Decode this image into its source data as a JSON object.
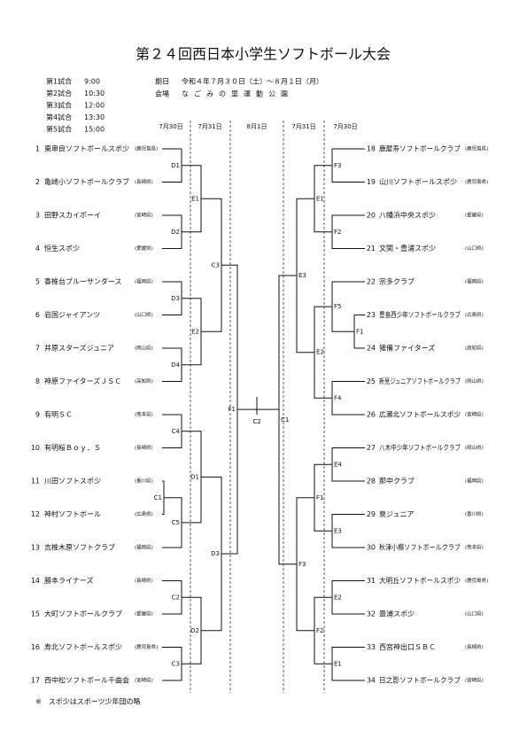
{
  "title": "第２４回西日本小学生ソフトボール大会",
  "schedule": [
    {
      "game": "第1試合",
      "time": "9:00"
    },
    {
      "game": "第2試合",
      "time": "10:30"
    },
    {
      "game": "第3試合",
      "time": "12:00"
    },
    {
      "game": "第4試合",
      "time": "13:30"
    },
    {
      "game": "第5試合",
      "time": "15:00"
    }
  ],
  "period_label": "期日",
  "period": "令和４年７月３０日（土）～８月１日（月）",
  "venue_label": "会場",
  "venue": "なごみの里運動公園",
  "dates": [
    "7月30日",
    "7月31日",
    "8月1日",
    "7月31日",
    "7月30日"
  ],
  "teams_left": [
    {
      "no": 1,
      "name": "東串良ソフトボールスポ少",
      "pref": "(鹿児島県)"
    },
    {
      "no": 2,
      "name": "亀崎小ソフトボールクラブ",
      "pref": "(長崎県)"
    },
    {
      "no": 3,
      "name": "田野スカイボーイ",
      "pref": "(宮崎県)"
    },
    {
      "no": 4,
      "name": "恒生スポ少",
      "pref": "(愛媛県)"
    },
    {
      "no": 5,
      "name": "香椎台ブルーサンダース",
      "pref": "(福岡県)"
    },
    {
      "no": 6,
      "name": "岩国ジャイアンツ",
      "pref": "(山口県)"
    },
    {
      "no": 7,
      "name": "井原スターズジュニア",
      "pref": "(岡山県)"
    },
    {
      "no": 8,
      "name": "神原ファイターズＪＳＣ",
      "pref": "(高知県)"
    },
    {
      "no": 9,
      "name": "有明ＳＣ",
      "pref": "(熊本県)"
    },
    {
      "no": 10,
      "name": "有明桜Ｂｏｙ．Ｓ",
      "pref": "(長崎県)"
    },
    {
      "no": 11,
      "name": "川田ソフトスポ少",
      "pref": "(香川県)"
    },
    {
      "no": 12,
      "name": "神村ソフトボール",
      "pref": "(広島県)"
    },
    {
      "no": 13,
      "name": "吉椎木原ソフトクラブ",
      "pref": "(福岡県)"
    },
    {
      "no": 14,
      "name": "勝本ライナーズ",
      "pref": "(長崎県)"
    },
    {
      "no": 15,
      "name": "大町ソフトボールクラブ",
      "pref": "(愛媛県)"
    },
    {
      "no": 16,
      "name": "寿北ソフトボールスポ少",
      "pref": "(鹿児島県)"
    },
    {
      "no": 17,
      "name": "西中松ソフトボール千曲会",
      "pref": "(宮崎県)"
    }
  ],
  "teams_right": [
    {
      "no": 18,
      "name": "鹿屋寿ソフトボールクラブ",
      "pref": "(鹿児島県)"
    },
    {
      "no": 19,
      "name": "山川ソフトボールスポ少",
      "pref": "(鹿児島県)"
    },
    {
      "no": 20,
      "name": "八幡浜中央スポ少",
      "pref": "(愛媛県)"
    },
    {
      "no": 21,
      "name": "文関・豊浦スポ少",
      "pref": "(山口県)"
    },
    {
      "no": 22,
      "name": "宗多クラブ",
      "pref": "(福岡県)"
    },
    {
      "no": 23,
      "name": "豊島西少年ソフトボールクラブ",
      "pref": "(広島県)"
    },
    {
      "no": 24,
      "name": "猪備ファイターズ",
      "pref": "(高知県)"
    },
    {
      "no": 25,
      "name": "新見ジュニアソフトボールクラブ",
      "pref": "(岡山県)"
    },
    {
      "no": 26,
      "name": "広瀬北ソフトボールスポ少",
      "pref": "(宮崎県)"
    },
    {
      "no": 27,
      "name": "八木中少年ソフトボールクラブ",
      "pref": "(岡山県)"
    },
    {
      "no": 28,
      "name": "那中クラブ",
      "pref": "(福岡県)"
    },
    {
      "no": 29,
      "name": "泉ジュニア",
      "pref": "(香川県)"
    },
    {
      "no": 30,
      "name": "秋津小櫛ソフトボールクラブ",
      "pref": "(熊本県)"
    },
    {
      "no": 31,
      "name": "大明丘ソフトボールスポ少",
      "pref": "(鹿児島県)"
    },
    {
      "no": 32,
      "name": "豊浦スポ少",
      "pref": "(山口県)"
    },
    {
      "no": 33,
      "name": "西宮神出口ＳＢＣ",
      "pref": "(長崎県)"
    },
    {
      "no": 34,
      "name": "日之影ソフトボールクラブ",
      "pref": "(宮崎県)"
    }
  ],
  "matches_left": [
    "D1",
    "D2",
    "E1",
    "D3",
    "D4",
    "E2",
    "C3",
    "C4",
    "C1",
    "C5",
    "D1",
    "C2",
    "C3",
    "D2",
    "D3",
    "F1"
  ],
  "matches_right": [
    "F3",
    "F2",
    "E1",
    "F1",
    "F5",
    "F4",
    "E2",
    "E3",
    "E4",
    "E3",
    "F1",
    "E2",
    "E1",
    "F2",
    "F3",
    "C1"
  ],
  "final": "C2",
  "note": "※　スポ少はスポーツ少年団の略"
}
